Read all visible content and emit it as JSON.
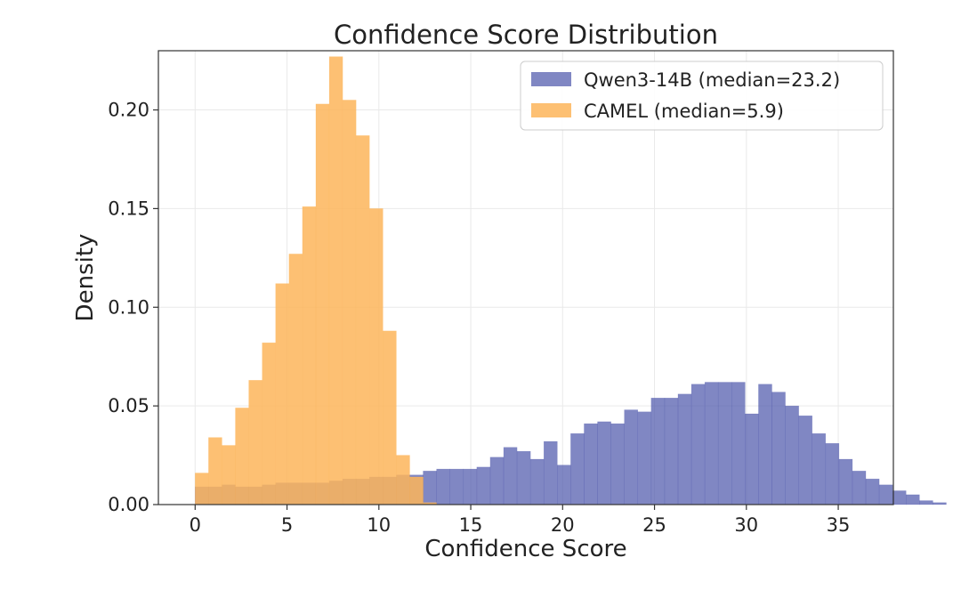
{
  "chart_data": {
    "type": "bar",
    "title": "Confidence Score Distribution",
    "xlabel": "Confidence Score",
    "ylabel": "Density",
    "xlim": [
      -2,
      38
    ],
    "ylim": [
      0,
      0.23
    ],
    "xticks": [
      {
        "value": 0,
        "label": "0"
      },
      {
        "value": 5,
        "label": "5"
      },
      {
        "value": 10,
        "label": "10"
      },
      {
        "value": 15,
        "label": "15"
      },
      {
        "value": 20,
        "label": "20"
      },
      {
        "value": 25,
        "label": "25"
      },
      {
        "value": 30,
        "label": "30"
      },
      {
        "value": 35,
        "label": "35"
      }
    ],
    "yticks": [
      {
        "value": 0,
        "label": "0.00"
      },
      {
        "value": 0.05,
        "label": "0.05"
      },
      {
        "value": 0.1,
        "label": "0.10"
      },
      {
        "value": 0.15,
        "label": "0.15"
      },
      {
        "value": 0.2,
        "label": "0.20"
      }
    ],
    "grid": true,
    "legend_position": "top-right",
    "series": [
      {
        "name": "Qwen3-14B (median=23.2)",
        "color": "#4a54aa",
        "opacity": 0.7,
        "bin_start": 0,
        "bin_width": 0.73,
        "values": [
          0.009,
          0.009,
          0.01,
          0.009,
          0.009,
          0.01,
          0.011,
          0.011,
          0.011,
          0.011,
          0.012,
          0.013,
          0.013,
          0.014,
          0.014,
          0.015,
          0.015,
          0.017,
          0.018,
          0.018,
          0.018,
          0.019,
          0.024,
          0.029,
          0.027,
          0.023,
          0.032,
          0.02,
          0.036,
          0.041,
          0.042,
          0.041,
          0.048,
          0.047,
          0.054,
          0.054,
          0.056,
          0.061,
          0.062,
          0.062,
          0.062,
          0.046,
          0.061,
          0.057,
          0.05,
          0.045,
          0.036,
          0.031,
          0.023,
          0.017,
          0.013,
          0.01,
          0.007,
          0.005,
          0.002,
          0.001
        ]
      },
      {
        "name": "CAMEL (median=5.9)",
        "color": "#fdb55a",
        "opacity": 0.85,
        "bin_start": 0,
        "bin_width": 0.73,
        "values": [
          0.016,
          0.034,
          0.03,
          0.049,
          0.063,
          0.082,
          0.112,
          0.127,
          0.151,
          0.203,
          0.227,
          0.205,
          0.187,
          0.15,
          0.088,
          0.025,
          0.014,
          0.001
        ]
      }
    ]
  }
}
